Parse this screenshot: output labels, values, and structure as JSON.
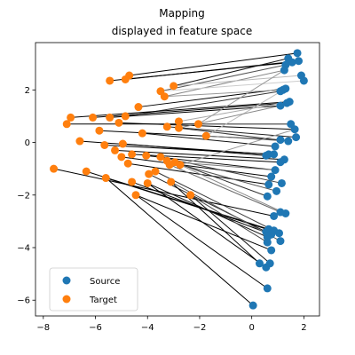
{
  "chart_data": {
    "type": "scatter",
    "title_lines": [
      "Mapping",
      "displayed in feature space"
    ],
    "xlabel": "",
    "ylabel": "",
    "xlim": [
      -8.3,
      2.6
    ],
    "ylim": [
      -6.6,
      3.8
    ],
    "xticks": [
      -8,
      -6,
      -4,
      -2,
      0,
      2
    ],
    "yticks": [
      -6,
      -4,
      -2,
      0,
      2
    ],
    "grid": false,
    "legend": {
      "placement": "lower-left"
    },
    "series": [
      {
        "name": "Source",
        "color": "#1f77b4",
        "points": [
          [
            1.75,
            3.4
          ],
          [
            1.8,
            3.1
          ],
          [
            1.55,
            3.05
          ],
          [
            1.4,
            3.2
          ],
          [
            1.3,
            2.95
          ],
          [
            1.25,
            2.75
          ],
          [
            1.9,
            2.55
          ],
          [
            2.0,
            2.35
          ],
          [
            1.3,
            2.05
          ],
          [
            1.2,
            2.0
          ],
          [
            1.1,
            1.95
          ],
          [
            1.45,
            1.55
          ],
          [
            1.35,
            1.5
          ],
          [
            1.1,
            1.4
          ],
          [
            1.5,
            0.7
          ],
          [
            1.65,
            0.5
          ],
          [
            1.7,
            0.2
          ],
          [
            1.4,
            0.05
          ],
          [
            1.1,
            0.1
          ],
          [
            0.9,
            -0.15
          ],
          [
            0.65,
            -0.45
          ],
          [
            0.85,
            -0.45
          ],
          [
            0.55,
            -0.5
          ],
          [
            1.25,
            -0.65
          ],
          [
            1.1,
            -0.75
          ],
          [
            0.9,
            -1.05
          ],
          [
            0.75,
            -1.3
          ],
          [
            1.15,
            -1.55
          ],
          [
            0.65,
            -1.6
          ],
          [
            0.95,
            -1.85
          ],
          [
            0.6,
            -2.05
          ],
          [
            1.1,
            -2.65
          ],
          [
            1.3,
            -2.7
          ],
          [
            0.85,
            -2.8
          ],
          [
            0.65,
            -3.3
          ],
          [
            0.85,
            -3.35
          ],
          [
            0.55,
            -3.4
          ],
          [
            1.05,
            -3.45
          ],
          [
            0.75,
            -3.5
          ],
          [
            0.6,
            -3.6
          ],
          [
            1.1,
            -3.75
          ],
          [
            0.6,
            -3.8
          ],
          [
            0.75,
            -4.1
          ],
          [
            0.3,
            -4.6
          ],
          [
            0.55,
            -4.75
          ],
          [
            0.7,
            -4.6
          ],
          [
            0.6,
            -5.55
          ],
          [
            0.05,
            -6.2
          ]
        ]
      },
      {
        "name": "Target",
        "color": "#ff7f0e",
        "points": [
          [
            -4.7,
            2.55
          ],
          [
            -4.85,
            2.4
          ],
          [
            -5.45,
            2.35
          ],
          [
            -3.0,
            2.15
          ],
          [
            -3.5,
            1.95
          ],
          [
            -3.35,
            1.75
          ],
          [
            -4.35,
            1.35
          ],
          [
            -6.95,
            0.95
          ],
          [
            -6.1,
            0.95
          ],
          [
            -5.45,
            0.95
          ],
          [
            -4.85,
            1.0
          ],
          [
            -7.1,
            0.7
          ],
          [
            -5.1,
            0.75
          ],
          [
            -3.25,
            0.6
          ],
          [
            -2.8,
            0.8
          ],
          [
            -2.8,
            0.55
          ],
          [
            -2.05,
            0.7
          ],
          [
            -5.85,
            0.45
          ],
          [
            -4.2,
            0.35
          ],
          [
            -1.75,
            0.25
          ],
          [
            -6.6,
            0.05
          ],
          [
            -5.65,
            -0.1
          ],
          [
            -4.95,
            -0.05
          ],
          [
            -5.25,
            -0.3
          ],
          [
            -4.6,
            -0.45
          ],
          [
            -4.05,
            -0.5
          ],
          [
            -5.0,
            -0.55
          ],
          [
            -3.5,
            -0.55
          ],
          [
            -4.75,
            -0.8
          ],
          [
            -3.25,
            -0.7
          ],
          [
            -2.95,
            -0.75
          ],
          [
            -3.15,
            -0.85
          ],
          [
            -2.75,
            -0.85
          ],
          [
            -7.6,
            -1.0
          ],
          [
            -6.35,
            -1.1
          ],
          [
            -3.7,
            -1.1
          ],
          [
            -3.95,
            -1.2
          ],
          [
            -5.6,
            -1.35
          ],
          [
            -4.6,
            -1.5
          ],
          [
            -4.0,
            -1.55
          ],
          [
            -3.1,
            -1.5
          ],
          [
            -2.35,
            -2.0
          ],
          [
            -4.45,
            -2.0
          ]
        ]
      }
    ],
    "mapping_lines": [
      {
        "from": [
          1.75,
          3.4
        ],
        "to": [
          -4.7,
          2.55
        ],
        "shade": "#000000"
      },
      {
        "from": [
          1.8,
          3.1
        ],
        "to": [
          -4.85,
          2.4
        ],
        "shade": "#000000"
      },
      {
        "from": [
          1.55,
          3.05
        ],
        "to": [
          -5.45,
          2.35
        ],
        "shade": "#000000"
      },
      {
        "from": [
          1.4,
          3.2
        ],
        "to": [
          -3.0,
          2.15
        ],
        "shade": "#1a1a1a"
      },
      {
        "from": [
          1.3,
          2.95
        ],
        "to": [
          -3.5,
          1.95
        ],
        "shade": "#555555"
      },
      {
        "from": [
          1.25,
          2.75
        ],
        "to": [
          -3.35,
          1.75
        ],
        "shade": "#888888"
      },
      {
        "from": [
          1.9,
          2.55
        ],
        "to": [
          -3.0,
          2.15
        ],
        "shade": "#bbbbbb"
      },
      {
        "from": [
          2.0,
          2.35
        ],
        "to": [
          -3.5,
          1.95
        ],
        "shade": "#cccccc"
      },
      {
        "from": [
          1.3,
          2.05
        ],
        "to": [
          -4.35,
          1.35
        ],
        "shade": "#000000"
      },
      {
        "from": [
          1.2,
          2.0
        ],
        "to": [
          -3.35,
          1.75
        ],
        "shade": "#999999"
      },
      {
        "from": [
          1.1,
          1.95
        ],
        "to": [
          -4.85,
          1.0
        ],
        "shade": "#333333"
      },
      {
        "from": [
          1.45,
          1.55
        ],
        "to": [
          -6.95,
          0.95
        ],
        "shade": "#000000"
      },
      {
        "from": [
          1.35,
          1.5
        ],
        "to": [
          -6.1,
          0.95
        ],
        "shade": "#000000"
      },
      {
        "from": [
          1.1,
          1.4
        ],
        "to": [
          -5.45,
          0.95
        ],
        "shade": "#000000"
      },
      {
        "from": [
          1.45,
          1.55
        ],
        "to": [
          -2.8,
          0.8
        ],
        "shade": "#aaaaaa"
      },
      {
        "from": [
          1.5,
          0.7
        ],
        "to": [
          -7.1,
          0.7
        ],
        "shade": "#000000"
      },
      {
        "from": [
          1.65,
          0.5
        ],
        "to": [
          -5.1,
          0.75
        ],
        "shade": "#000000"
      },
      {
        "from": [
          1.7,
          0.2
        ],
        "to": [
          -3.25,
          0.6
        ],
        "shade": "#222222"
      },
      {
        "from": [
          1.4,
          0.05
        ],
        "to": [
          -2.8,
          0.55
        ],
        "shade": "#333333"
      },
      {
        "from": [
          1.5,
          0.7
        ],
        "to": [
          -2.05,
          0.7
        ],
        "shade": "#666666"
      },
      {
        "from": [
          1.1,
          0.1
        ],
        "to": [
          -5.85,
          0.45
        ],
        "shade": "#000000"
      },
      {
        "from": [
          0.9,
          -0.15
        ],
        "to": [
          -4.2,
          0.35
        ],
        "shade": "#111111"
      },
      {
        "from": [
          1.4,
          0.05
        ],
        "to": [
          -1.75,
          0.25
        ],
        "shade": "#777777"
      },
      {
        "from": [
          0.65,
          -0.45
        ],
        "to": [
          -6.6,
          0.05
        ],
        "shade": "#000000"
      },
      {
        "from": [
          0.85,
          -0.45
        ],
        "to": [
          -5.65,
          -0.1
        ],
        "shade": "#000000"
      },
      {
        "from": [
          0.55,
          -0.5
        ],
        "to": [
          -4.95,
          -0.05
        ],
        "shade": "#000000"
      },
      {
        "from": [
          1.25,
          -0.65
        ],
        "to": [
          -5.25,
          -0.3
        ],
        "shade": "#000000"
      },
      {
        "from": [
          1.1,
          -0.75
        ],
        "to": [
          -4.6,
          -0.45
        ],
        "shade": "#000000"
      },
      {
        "from": [
          0.9,
          -1.05
        ],
        "to": [
          -4.05,
          -0.5
        ],
        "shade": "#111111"
      },
      {
        "from": [
          0.75,
          -1.3
        ],
        "to": [
          -5.0,
          -0.55
        ],
        "shade": "#000000"
      },
      {
        "from": [
          1.15,
          -1.55
        ],
        "to": [
          -3.5,
          -0.55
        ],
        "shade": "#444444"
      },
      {
        "from": [
          0.65,
          -1.6
        ],
        "to": [
          -4.75,
          -0.8
        ],
        "shade": "#000000"
      },
      {
        "from": [
          0.95,
          -1.85
        ],
        "to": [
          -3.25,
          -0.7
        ],
        "shade": "#555555"
      },
      {
        "from": [
          0.6,
          -2.05
        ],
        "to": [
          -2.95,
          -0.75
        ],
        "shade": "#333333"
      },
      {
        "from": [
          1.1,
          -2.65
        ],
        "to": [
          -3.15,
          -0.85
        ],
        "shade": "#666666"
      },
      {
        "from": [
          1.3,
          -2.7
        ],
        "to": [
          -2.75,
          -0.85
        ],
        "shade": "#888888"
      },
      {
        "from": [
          0.85,
          -2.8
        ],
        "to": [
          -7.6,
          -1.0
        ],
        "shade": "#000000"
      },
      {
        "from": [
          0.65,
          -3.3
        ],
        "to": [
          -6.35,
          -1.1
        ],
        "shade": "#000000"
      },
      {
        "from": [
          0.85,
          -3.35
        ],
        "to": [
          -3.7,
          -1.1
        ],
        "shade": "#333333"
      },
      {
        "from": [
          0.55,
          -3.4
        ],
        "to": [
          -3.95,
          -1.2
        ],
        "shade": "#222222"
      },
      {
        "from": [
          1.05,
          -3.45
        ],
        "to": [
          -5.6,
          -1.35
        ],
        "shade": "#000000"
      },
      {
        "from": [
          0.75,
          -3.5
        ],
        "to": [
          -4.6,
          -1.5
        ],
        "shade": "#000000"
      },
      {
        "from": [
          0.6,
          -3.6
        ],
        "to": [
          -4.0,
          -1.55
        ],
        "shade": "#111111"
      },
      {
        "from": [
          1.1,
          -3.75
        ],
        "to": [
          -3.1,
          -1.5
        ],
        "shade": "#555555"
      },
      {
        "from": [
          0.6,
          -3.8
        ],
        "to": [
          -2.35,
          -2.0
        ],
        "shade": "#444444"
      },
      {
        "from": [
          0.75,
          -4.1
        ],
        "to": [
          -4.45,
          -2.0
        ],
        "shade": "#000000"
      },
      {
        "from": [
          0.3,
          -4.6
        ],
        "to": [
          -3.1,
          -1.5
        ],
        "shade": "#000000"
      },
      {
        "from": [
          0.55,
          -4.75
        ],
        "to": [
          -4.0,
          -1.55
        ],
        "shade": "#000000"
      },
      {
        "from": [
          0.7,
          -4.6
        ],
        "to": [
          -2.35,
          -2.0
        ],
        "shade": "#111111"
      },
      {
        "from": [
          0.6,
          -5.55
        ],
        "to": [
          -4.45,
          -2.0
        ],
        "shade": "#000000"
      },
      {
        "from": [
          0.05,
          -6.2
        ],
        "to": [
          -5.6,
          -1.35
        ],
        "shade": "#000000"
      },
      {
        "from": [
          1.25,
          2.75
        ],
        "to": [
          -2.05,
          0.7
        ],
        "shade": "#999999"
      },
      {
        "from": [
          1.3,
          2.05
        ],
        "to": [
          -1.75,
          0.25
        ],
        "shade": "#bbbbbb"
      },
      {
        "from": [
          1.1,
          1.4
        ],
        "to": [
          -2.8,
          0.55
        ],
        "shade": "#888888"
      },
      {
        "from": [
          1.65,
          0.5
        ],
        "to": [
          -2.75,
          -0.85
        ],
        "shade": "#999999"
      },
      {
        "from": [
          0.9,
          -1.05
        ],
        "to": [
          -2.95,
          -0.75
        ],
        "shade": "#777777"
      }
    ]
  }
}
